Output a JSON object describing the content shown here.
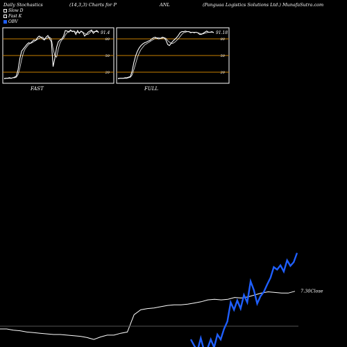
{
  "header": {
    "left": "Daily Stochastics",
    "params": "(14,3,3) Charts for P",
    "symbol": "ANL",
    "company": "(Panguaa  Logistics Solutions Ltd.) MunafaSutra.com"
  },
  "legend": [
    {
      "label": "Slow  D",
      "color": "#ffffff"
    },
    {
      "label": "Fast  K",
      "color": "#ffffff"
    },
    {
      "label": "OBV",
      "color": "#1f5fff"
    }
  ],
  "colors": {
    "background": "#000000",
    "grid": "#c87f00",
    "line": "#ffffff",
    "obv": "#1f5fff"
  },
  "chart_data": [
    {
      "type": "line",
      "title": "FAST",
      "ylim": [
        0,
        100
      ],
      "ticks": [
        20,
        50,
        80
      ],
      "value_label": "91.4",
      "series": [
        {
          "name": "Fast K",
          "values": [
            8,
            9,
            9,
            10,
            9,
            10,
            11,
            13,
            25,
            45,
            58,
            62,
            66,
            70,
            73,
            72,
            75,
            78,
            77,
            82,
            85,
            83,
            80,
            78,
            83,
            86,
            80,
            75,
            30,
            45,
            65,
            75,
            78,
            80,
            85,
            95,
            94,
            92,
            96,
            93,
            94,
            88,
            95,
            90,
            94,
            92,
            85,
            88,
            92,
            94,
            96,
            90,
            93,
            95,
            91
          ]
        },
        {
          "name": "Slow D",
          "values": [
            9,
            9,
            9,
            9,
            9,
            10,
            10,
            11,
            16,
            28,
            43,
            55,
            62,
            66,
            70,
            72,
            73,
            75,
            77,
            79,
            81,
            83,
            83,
            80,
            80,
            82,
            83,
            80,
            62,
            50,
            47,
            62,
            73,
            78,
            81,
            87,
            91,
            94,
            94,
            94,
            94,
            92,
            92,
            91,
            93,
            92,
            90,
            88,
            88,
            91,
            94,
            93,
            93,
            93,
            93
          ]
        }
      ]
    },
    {
      "type": "line",
      "title": "FULL",
      "ylim": [
        0,
        100
      ],
      "ticks": [
        20,
        50,
        80
      ],
      "value_label": "91.18",
      "series": [
        {
          "name": "Fast K",
          "values": [
            8,
            9,
            9,
            9,
            10,
            10,
            11,
            12,
            22,
            38,
            50,
            58,
            64,
            68,
            71,
            73,
            74,
            76,
            77,
            80,
            82,
            83,
            81,
            80,
            81,
            83,
            82,
            78,
            70,
            68,
            72,
            76,
            79,
            82,
            86,
            91,
            93,
            93,
            94,
            93,
            93,
            91,
            92,
            91,
            92,
            91,
            88,
            88,
            90,
            92,
            94,
            92,
            92,
            93,
            91
          ]
        },
        {
          "name": "Slow D",
          "values": [
            9,
            9,
            9,
            9,
            9,
            9,
            10,
            11,
            15,
            25,
            36,
            47,
            55,
            61,
            65,
            69,
            71,
            73,
            75,
            77,
            79,
            81,
            82,
            82,
            81,
            81,
            82,
            81,
            77,
            74,
            72,
            72,
            74,
            77,
            80,
            84,
            88,
            91,
            92,
            93,
            93,
            92,
            92,
            92,
            92,
            91,
            90,
            89,
            89,
            90,
            91,
            92,
            92,
            92,
            92
          ]
        }
      ]
    },
    {
      "type": "line",
      "title": "",
      "value_label": "7.30",
      "value_suffix": "Close",
      "series": [
        {
          "name": "Close",
          "values": [
            1.2,
            1.2,
            1.0,
            0.9,
            0.7,
            0.6,
            0.5,
            0.4,
            0.3,
            0.3,
            0.2,
            0.1,
            0.0,
            -0.2,
            -0.5,
            -0.1,
            0.2,
            0.2,
            0.5,
            0.7,
            3.5,
            4.3,
            4.5,
            4.6,
            4.8,
            5.0,
            5.1,
            5.1,
            5.2,
            5.4,
            5.6,
            5.9,
            6.0,
            5.9,
            6.0,
            6.3,
            6.2,
            6.4,
            6.7,
            7.0,
            7.2,
            7.1,
            7.0,
            7.0,
            7.3
          ]
        },
        {
          "name": "OBV",
          "values": [
            -0.5,
            -1.5,
            -2.3,
            -0.3,
            -2.3,
            -2.0,
            -0.5,
            -1.8,
            0.3,
            -0.5,
            1.2,
            2.4,
            5.5,
            4.3,
            5.8,
            4.5,
            6.7,
            5.5,
            8.9,
            7.5,
            5.3,
            6.5,
            7.2,
            8.4,
            9.5,
            11.2,
            10.8,
            11.5,
            10.5,
            12.3,
            11.4,
            12.0,
            13.5
          ]
        }
      ]
    }
  ]
}
